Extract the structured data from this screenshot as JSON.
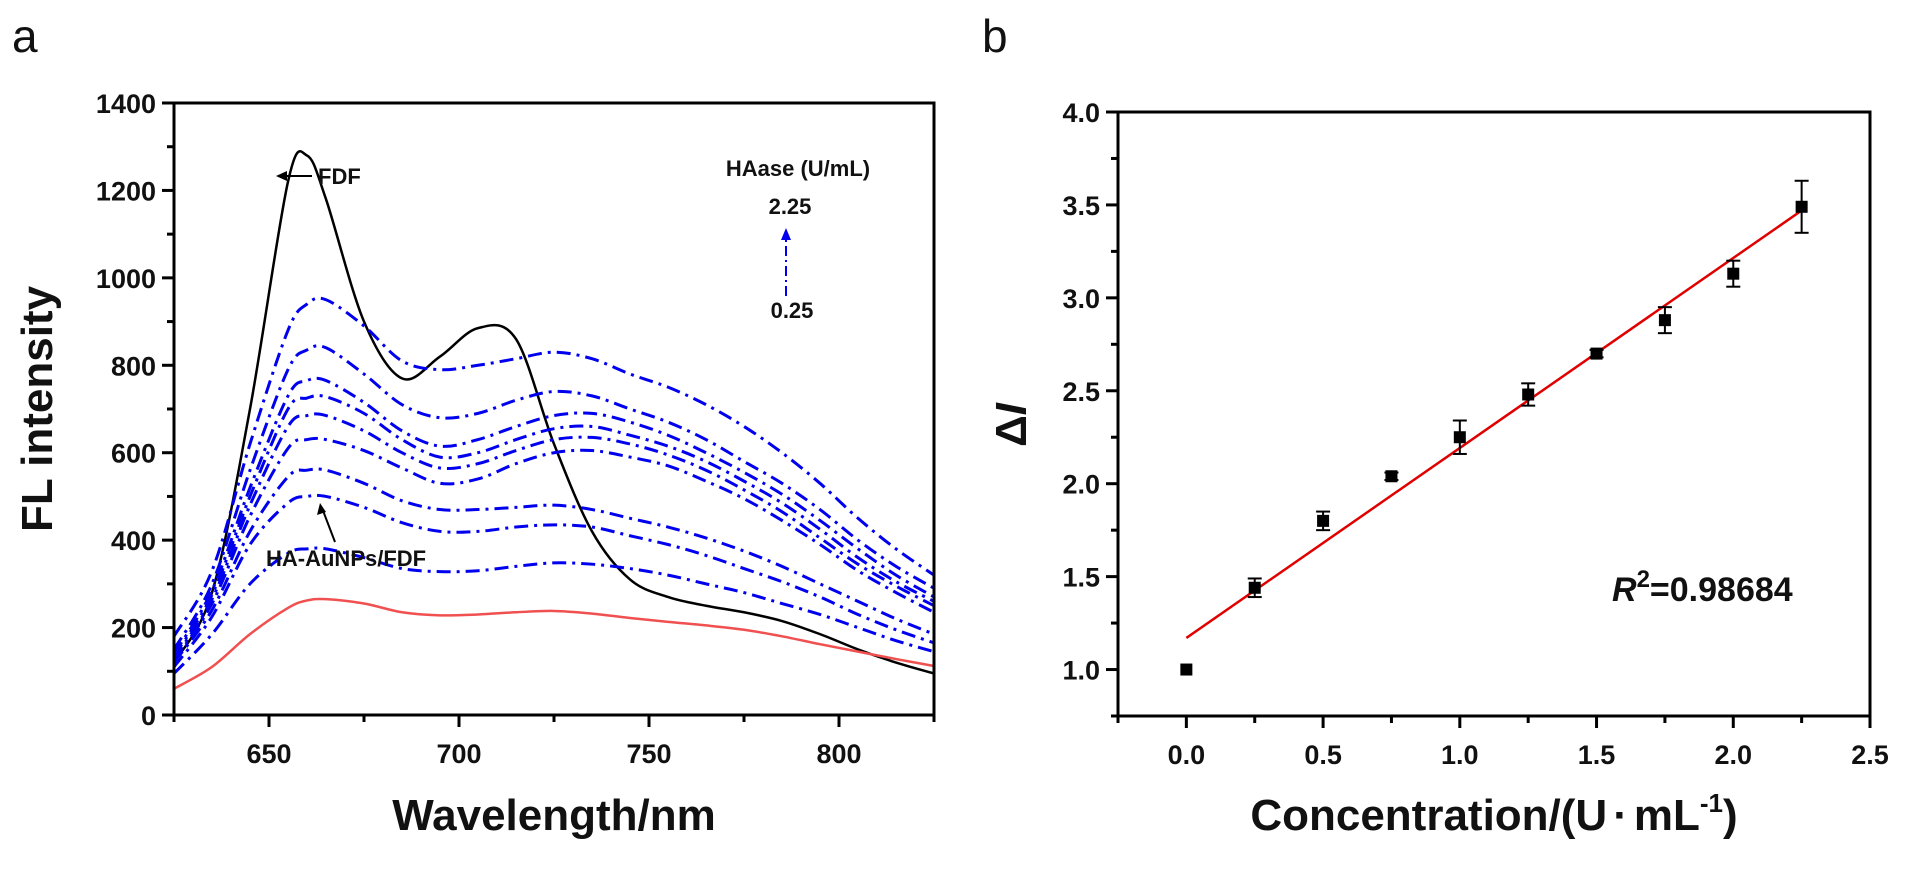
{
  "figure": {
    "panel_a_label": "a",
    "panel_b_label": "b"
  },
  "chart_data": [
    {
      "type": "line",
      "panel": "a",
      "title": "",
      "xlabel": "Wavelength/nm",
      "ylabel": "FL intensity",
      "xlim": [
        625,
        825
      ],
      "ylim": [
        0,
        1400
      ],
      "xticks": [
        650,
        700,
        750,
        800
      ],
      "xtick_labels": [
        "650",
        "700",
        "750",
        "800"
      ],
      "yticks": [
        0,
        200,
        400,
        600,
        800,
        1000,
        1200,
        1400
      ],
      "ytick_labels": [
        "0",
        "200",
        "400",
        "600",
        "800",
        "1000",
        "1200",
        "1400"
      ],
      "grid": false,
      "annotations": {
        "fdf_label": "FDF",
        "haunp_label": "HA-AuNPs/FDF",
        "legend_title": "HAase (U/mL)",
        "arrow_top": "2.25",
        "arrow_bottom": "0.25"
      },
      "x": [
        625,
        635,
        645,
        655,
        660,
        665,
        675,
        685,
        695,
        705,
        715,
        725,
        735,
        745,
        755,
        765,
        775,
        785,
        795,
        805,
        815,
        825
      ],
      "series": [
        {
          "name": "FDF",
          "color": "#000000",
          "style": "solid",
          "values": [
            120,
            280,
            700,
            1220,
            1280,
            1180,
            900,
            770,
            820,
            885,
            860,
            620,
            420,
            310,
            270,
            250,
            235,
            215,
            185,
            150,
            120,
            95
          ]
        },
        {
          "name": "HAase 2.25 U/mL",
          "color": "#0000ee",
          "style": "dashdot",
          "values": [
            180,
            330,
            620,
            880,
            940,
            950,
            890,
            810,
            790,
            800,
            815,
            830,
            815,
            780,
            750,
            710,
            660,
            600,
            530,
            450,
            380,
            320
          ]
        },
        {
          "name": "HAase 2.00 U/mL",
          "color": "#0000ee",
          "style": "dashdot",
          "values": [
            150,
            300,
            560,
            790,
            835,
            840,
            780,
            710,
            680,
            690,
            720,
            740,
            730,
            700,
            670,
            630,
            580,
            530,
            470,
            400,
            340,
            290
          ]
        },
        {
          "name": "HAase 1.75 U/mL",
          "color": "#0000ee",
          "style": "dashdot",
          "values": [
            140,
            285,
            520,
            730,
            765,
            765,
            715,
            650,
            615,
            630,
            660,
            685,
            690,
            670,
            640,
            600,
            555,
            505,
            445,
            380,
            320,
            270
          ]
        },
        {
          "name": "HAase 1.50 U/mL",
          "color": "#0000ee",
          "style": "dashdot",
          "values": [
            135,
            275,
            500,
            700,
            725,
            728,
            690,
            630,
            590,
            600,
            630,
            655,
            660,
            640,
            615,
            580,
            535,
            485,
            425,
            360,
            305,
            260
          ]
        },
        {
          "name": "HAase 1.25 U/mL",
          "color": "#0000ee",
          "style": "dashdot",
          "values": [
            130,
            265,
            480,
            660,
            685,
            685,
            650,
            600,
            565,
            575,
            605,
            630,
            635,
            620,
            595,
            560,
            515,
            465,
            405,
            345,
            295,
            250
          ]
        },
        {
          "name": "HAase 1.00 U/mL",
          "color": "#0000ee",
          "style": "dashdot",
          "values": [
            125,
            255,
            455,
            610,
            630,
            630,
            605,
            565,
            530,
            540,
            575,
            600,
            605,
            590,
            570,
            535,
            495,
            445,
            390,
            330,
            280,
            235
          ]
        },
        {
          "name": "HAase 0.75 U/mL",
          "color": "#0000ee",
          "style": "dashdot",
          "values": [
            120,
            240,
            420,
            545,
            560,
            560,
            530,
            490,
            470,
            470,
            475,
            480,
            470,
            450,
            430,
            405,
            375,
            340,
            300,
            260,
            220,
            185
          ]
        },
        {
          "name": "HAase 0.50 U/mL",
          "color": "#0000ee",
          "style": "dashdot",
          "values": [
            110,
            225,
            390,
            485,
            500,
            500,
            475,
            440,
            420,
            420,
            430,
            435,
            430,
            410,
            390,
            365,
            335,
            305,
            270,
            230,
            195,
            165
          ]
        },
        {
          "name": "HAase 0.25 U/mL",
          "color": "#0000ee",
          "style": "dashdot",
          "values": [
            95,
            185,
            300,
            370,
            380,
            380,
            360,
            335,
            328,
            330,
            340,
            348,
            345,
            335,
            320,
            300,
            280,
            255,
            230,
            200,
            170,
            145
          ]
        },
        {
          "name": "HA-AuNPs/FDF",
          "color": "#f05050",
          "style": "solid",
          "values": [
            60,
            110,
            185,
            245,
            262,
            265,
            255,
            235,
            228,
            230,
            235,
            238,
            232,
            222,
            213,
            205,
            195,
            180,
            162,
            145,
            128,
            112
          ]
        }
      ]
    },
    {
      "type": "scatter",
      "panel": "b",
      "title": "",
      "xlabel": "Concentration/(U·mL⁻¹)",
      "xlabel_parts": {
        "main": "Concentration/(U",
        "dot": "·",
        "unit": "mL",
        "sup": "-1",
        "close": ")"
      },
      "ylabel": "ΔI",
      "ylabel_parts": {
        "delta": "Δ",
        "var": "I"
      },
      "xlim": [
        -0.25,
        2.5
      ],
      "ylim": [
        0.75,
        4.0
      ],
      "xticks": [
        0.0,
        0.5,
        1.0,
        1.5,
        2.0,
        2.5
      ],
      "xtick_labels": [
        "0.0",
        "0.5",
        "1.0",
        "1.5",
        "2.0",
        "2.5"
      ],
      "yticks": [
        1.0,
        1.5,
        2.0,
        2.5,
        3.0,
        3.5,
        4.0
      ],
      "ytick_labels": [
        "1.0",
        "1.5",
        "2.0",
        "2.5",
        "3.0",
        "3.5",
        "4.0"
      ],
      "grid": false,
      "points": {
        "x": [
          0.0,
          0.25,
          0.5,
          0.75,
          1.0,
          1.25,
          1.5,
          1.75,
          2.0,
          2.25
        ],
        "y": [
          1.0,
          1.44,
          1.8,
          2.04,
          2.25,
          2.48,
          2.7,
          2.88,
          3.13,
          3.49
        ],
        "err": [
          0.0,
          0.05,
          0.05,
          0.02,
          0.09,
          0.06,
          0.02,
          0.07,
          0.07,
          0.14
        ],
        "color": "#000000"
      },
      "fit": {
        "x_start": 0.0,
        "x_end": 2.25,
        "y_start": 1.17,
        "y_end": 3.47,
        "color": "#e00000"
      },
      "r2_label": {
        "var": "R",
        "sup": "2",
        "value": "=0.98684"
      }
    }
  ]
}
